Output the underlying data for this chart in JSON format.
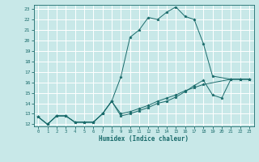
{
  "xlabel": "Humidex (Indice chaleur)",
  "bg_color": "#c8e8e8",
  "grid_color": "#ffffff",
  "line_color": "#1a6b6b",
  "xlim": [
    -0.5,
    23.5
  ],
  "ylim": [
    11.8,
    23.4
  ],
  "yticks": [
    12,
    13,
    14,
    15,
    16,
    17,
    18,
    19,
    20,
    21,
    22,
    23
  ],
  "xticks": [
    0,
    1,
    2,
    3,
    4,
    5,
    6,
    7,
    8,
    9,
    10,
    11,
    12,
    13,
    14,
    15,
    16,
    17,
    18,
    19,
    20,
    21,
    22,
    23
  ],
  "line1_x": [
    0,
    1,
    2,
    3,
    4,
    5,
    6,
    7,
    8,
    9,
    10,
    11,
    12,
    13,
    14,
    15,
    16,
    17,
    18,
    19,
    21,
    22,
    23
  ],
  "line1_y": [
    12.7,
    12.0,
    12.8,
    12.8,
    12.2,
    12.2,
    12.2,
    13.0,
    14.2,
    16.5,
    20.3,
    21.0,
    22.2,
    22.0,
    22.7,
    23.2,
    22.3,
    22.0,
    19.7,
    16.6,
    16.3,
    16.3,
    16.3
  ],
  "line2_x": [
    0,
    1,
    2,
    3,
    4,
    5,
    6,
    7,
    8,
    9,
    10,
    11,
    12,
    13,
    14,
    15,
    16,
    17,
    18,
    21,
    22,
    23
  ],
  "line2_y": [
    12.7,
    12.0,
    12.8,
    12.8,
    12.2,
    12.2,
    12.2,
    13.0,
    14.2,
    13.0,
    13.2,
    13.5,
    13.8,
    14.2,
    14.5,
    14.8,
    15.2,
    15.5,
    15.8,
    16.3,
    16.3,
    16.3
  ],
  "line3_x": [
    0,
    1,
    2,
    3,
    4,
    5,
    6,
    7,
    8,
    9,
    10,
    11,
    12,
    13,
    14,
    15,
    16,
    17,
    18,
    19,
    20,
    21,
    22,
    23
  ],
  "line3_y": [
    12.7,
    12.0,
    12.8,
    12.8,
    12.2,
    12.2,
    12.2,
    13.0,
    14.2,
    12.8,
    13.0,
    13.3,
    13.6,
    14.0,
    14.2,
    14.6,
    15.1,
    15.7,
    16.2,
    14.8,
    14.5,
    16.3,
    16.3,
    16.3
  ]
}
